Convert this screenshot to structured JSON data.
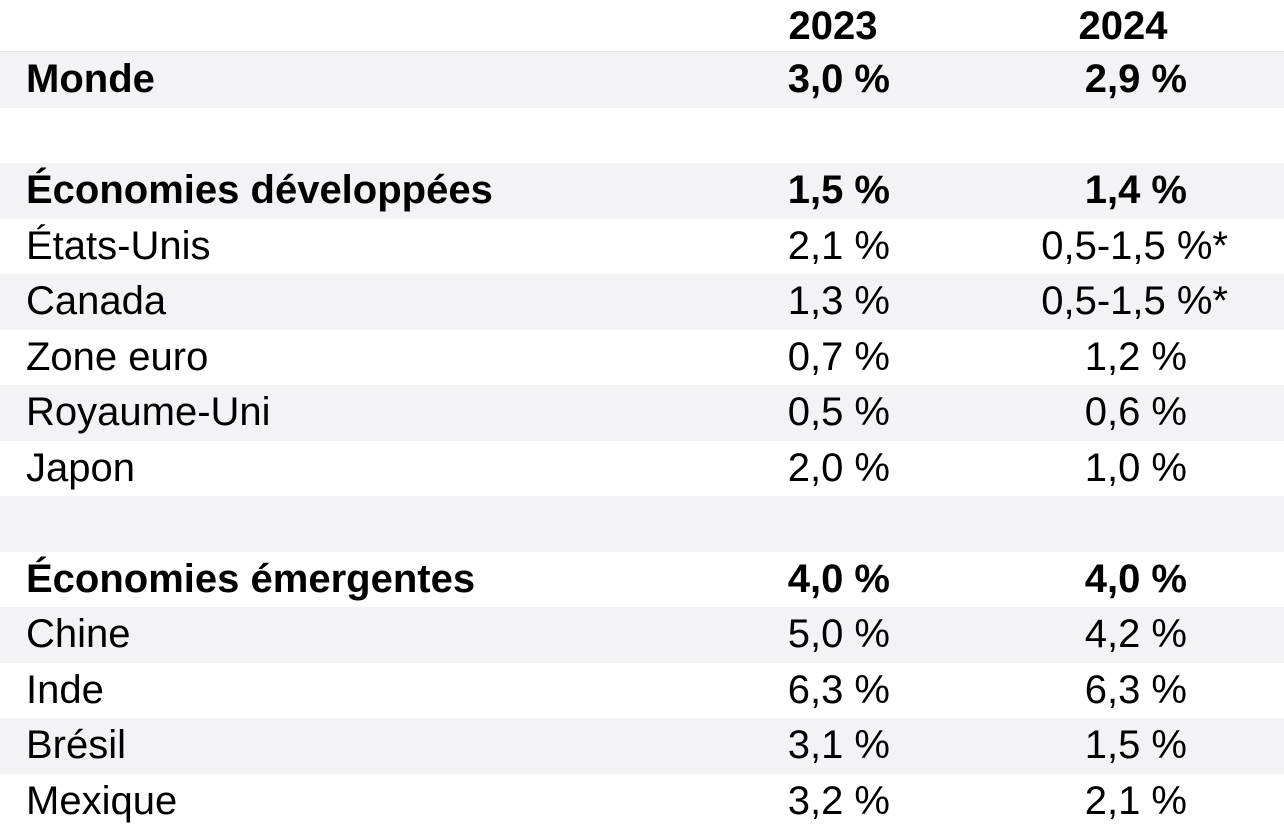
{
  "chart_data": {
    "type": "table",
    "columns": [
      "",
      "2023",
      "2024"
    ],
    "rows": [
      {
        "label": "Monde",
        "v2023": "3,0 %",
        "v2024": "2,9 %",
        "bold": true,
        "shaded": true,
        "note": false
      },
      {
        "label": "",
        "v2023": "",
        "v2024": "",
        "bold": false,
        "shaded": false,
        "note": false
      },
      {
        "label": "Économies développées",
        "v2023": "1,5 %",
        "v2024": "1,4 %",
        "bold": true,
        "shaded": true,
        "note": false
      },
      {
        "label": "États-Unis",
        "v2023": "2,1 %",
        "v2024": "0,5-1,5 %*",
        "bold": false,
        "shaded": false,
        "note": true
      },
      {
        "label": "Canada",
        "v2023": "1,3 %",
        "v2024": "0,5-1,5 %*",
        "bold": false,
        "shaded": true,
        "note": true
      },
      {
        "label": "Zone euro",
        "v2023": "0,7 %",
        "v2024": "1,2 %",
        "bold": false,
        "shaded": false,
        "note": false
      },
      {
        "label": "Royaume-Uni",
        "v2023": "0,5 %",
        "v2024": "0,6 %",
        "bold": false,
        "shaded": true,
        "note": false
      },
      {
        "label": "Japon",
        "v2023": "2,0 %",
        "v2024": "1,0 %",
        "bold": false,
        "shaded": false,
        "note": false
      },
      {
        "label": "",
        "v2023": "",
        "v2024": "",
        "bold": false,
        "shaded": true,
        "note": false
      },
      {
        "label": "Économies émergentes",
        "v2023": "4,0 %",
        "v2024": "4,0 %",
        "bold": true,
        "shaded": false,
        "note": false
      },
      {
        "label": "Chine",
        "v2023": "5,0 %",
        "v2024": "4,2 %",
        "bold": false,
        "shaded": true,
        "note": false
      },
      {
        "label": "Inde",
        "v2023": "6,3 %",
        "v2024": "6,3 %",
        "bold": false,
        "shaded": false,
        "note": false
      },
      {
        "label": "Brésil",
        "v2023": "3,1 %",
        "v2024": "1,5 %",
        "bold": false,
        "shaded": true,
        "note": false
      },
      {
        "label": "Mexique",
        "v2023": "3,2 %",
        "v2024": "2,1 %",
        "bold": false,
        "shaded": false,
        "note": false
      }
    ]
  }
}
